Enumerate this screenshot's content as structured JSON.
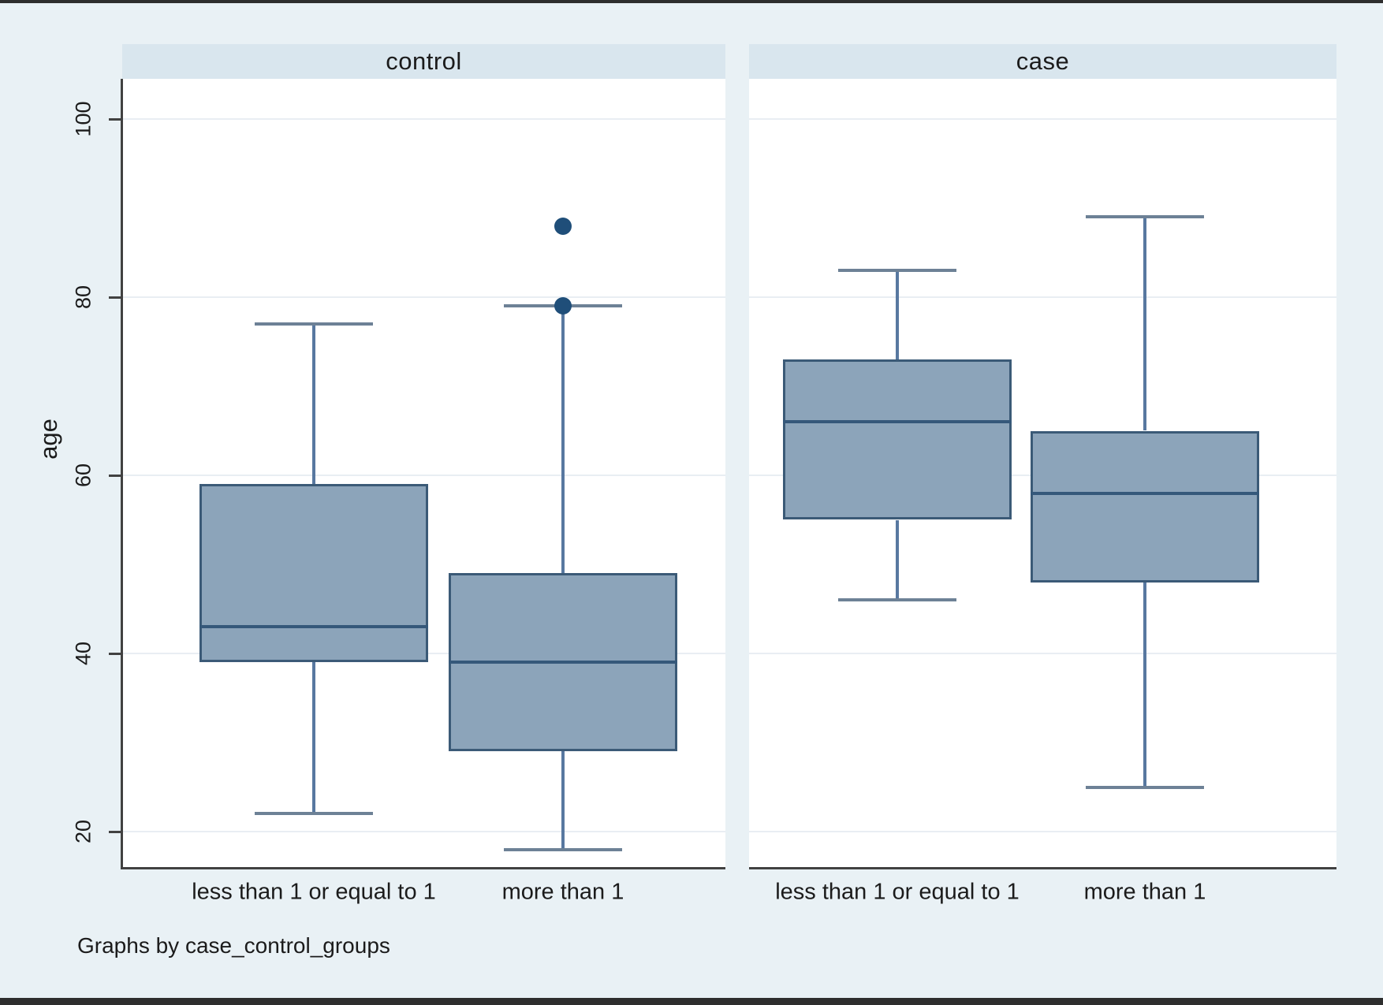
{
  "figure": {
    "ylabel": "age",
    "caption": "Graphs by case_control_groups"
  },
  "chart_data": {
    "type": "box",
    "title": "",
    "ylabel": "age",
    "xlabel": "",
    "caption": "Graphs by case_control_groups",
    "y_ticks": [
      20,
      40,
      60,
      80,
      100
    ],
    "ylim": [
      16,
      104
    ],
    "grid": "horizontal-light",
    "legend": "none",
    "panels": [
      {
        "title": "control",
        "boxes": [
          {
            "category": "less than 1 or equal to 1",
            "whisker_low": 22,
            "q1": 39,
            "median": 43,
            "q3": 59,
            "whisker_high": 77,
            "outliers": []
          },
          {
            "category": "more than 1",
            "whisker_low": 18,
            "q1": 29,
            "median": 39,
            "q3": 49,
            "whisker_high": 79,
            "outliers": [
              79,
              88
            ]
          }
        ]
      },
      {
        "title": "case",
        "boxes": [
          {
            "category": "less than 1 or equal to 1",
            "whisker_low": 46,
            "q1": 55,
            "median": 66,
            "q3": 73,
            "whisker_high": 83,
            "outliers": []
          },
          {
            "category": "more than 1",
            "whisker_low": 25,
            "q1": 48,
            "median": 58,
            "q3": 65,
            "whisker_high": 89,
            "outliers": []
          }
        ]
      }
    ]
  },
  "colors": {
    "background": "#e9f1f5",
    "plot_background": "#ffffff",
    "header_band": "#d9e6ee",
    "gridline": "#e9eef3",
    "axis": "#414141",
    "box_fill": "#8ca4ba",
    "box_border": "#3b5a77",
    "median": "#35587a",
    "whisker": "#5878a0",
    "whisker_cap": "#6d8196",
    "outlier": "#1f4e79",
    "text": "#1b1b1b",
    "page_border": "#2e2e2e"
  }
}
